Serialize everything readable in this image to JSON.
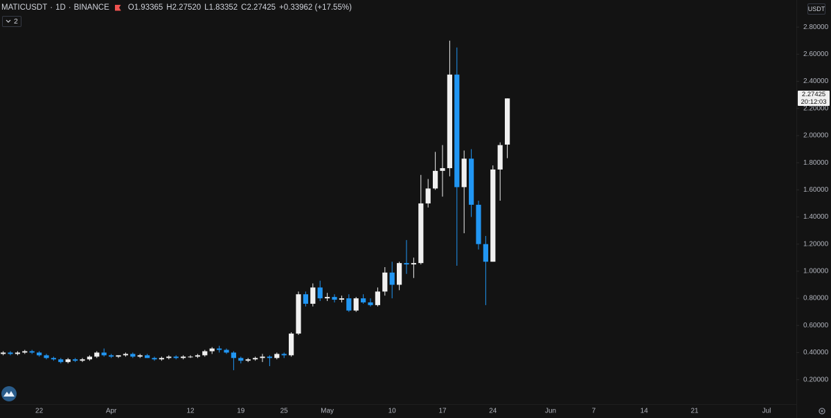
{
  "chart_data": {
    "type": "candlestick",
    "symbol": "MATICUSDT",
    "interval": "1D",
    "exchange": "BINANCE",
    "ohlc_legend": [
      {
        "label": "O",
        "value": "1.93365"
      },
      {
        "label": "H",
        "value": "2.27520"
      },
      {
        "label": "L",
        "value": "1.83352"
      },
      {
        "label": "C",
        "value": "2.27425"
      }
    ],
    "change": "+0.33962 (+17.55%)",
    "indicators_count": 2,
    "currency": "USDT",
    "last_price_label": "2.27425",
    "countdown": "20:12:03",
    "up_color": "#f0f0f0",
    "down_color": "#2196f3",
    "categories": [
      null,
      null,
      null,
      null,
      null,
      "22",
      null,
      null,
      null,
      null,
      null,
      null,
      null,
      null,
      null,
      "Apr",
      null,
      null,
      null,
      null,
      null,
      null,
      null,
      null,
      null,
      null,
      "12",
      null,
      null,
      null,
      null,
      null,
      null,
      "19",
      null,
      null,
      null,
      null,
      null,
      "25",
      null,
      null,
      null,
      null,
      null,
      "May",
      null,
      null,
      null,
      null,
      null,
      null,
      null,
      null,
      "10",
      null,
      null,
      null,
      null,
      null,
      null,
      "17",
      null,
      null,
      null,
      null,
      null,
      null,
      "24",
      null,
      null,
      null,
      null,
      null,
      null,
      null,
      "Jun",
      null,
      null,
      null,
      null,
      null,
      "7",
      null,
      null,
      null,
      null,
      null,
      null,
      "14",
      null,
      null,
      null,
      null,
      null,
      null,
      "21",
      null,
      null,
      null,
      null,
      null,
      null,
      null,
      null,
      null,
      "Jul"
    ],
    "open": [
      0.39,
      0.4,
      0.39,
      0.4,
      0.41,
      0.4,
      0.38,
      0.36,
      0.35,
      0.33,
      0.35,
      0.34,
      0.35,
      0.37,
      0.4,
      0.38,
      0.37,
      0.38,
      0.39,
      0.37,
      0.38,
      0.36,
      0.35,
      0.36,
      0.37,
      0.36,
      0.37,
      0.37,
      0.38,
      0.41,
      0.43,
      0.42,
      0.4,
      0.36,
      0.34,
      0.35,
      0.36,
      0.37,
      0.36,
      0.39,
      0.38,
      0.54,
      0.83,
      0.76,
      0.88,
      0.8,
      0.81,
      0.79,
      0.8,
      0.71,
      0.8,
      0.77,
      0.75,
      0.85,
      0.99,
      0.9,
      1.06,
      1.05,
      1.06,
      1.5,
      1.61,
      1.74,
      1.76,
      2.45,
      1.62,
      1.83,
      1.49,
      1.2,
      1.07,
      1.75,
      1.93365,
      null,
      null,
      null,
      null,
      null,
      null,
      null,
      null,
      null,
      null,
      null,
      null,
      null,
      null,
      null,
      null,
      null,
      null,
      null,
      null,
      null,
      null,
      null,
      null,
      null,
      null,
      null,
      null,
      null,
      null,
      null,
      null,
      null,
      null,
      null,
      null
    ],
    "high": [
      0.41,
      0.41,
      0.41,
      0.42,
      0.42,
      0.41,
      0.39,
      0.37,
      0.36,
      0.36,
      0.36,
      0.36,
      0.38,
      0.41,
      0.43,
      0.39,
      0.38,
      0.4,
      0.4,
      0.39,
      0.39,
      0.37,
      0.37,
      0.38,
      0.38,
      0.38,
      0.38,
      0.39,
      0.42,
      0.44,
      0.45,
      0.43,
      0.41,
      0.37,
      0.36,
      0.37,
      0.39,
      0.38,
      0.4,
      0.4,
      0.55,
      0.85,
      0.85,
      0.91,
      0.93,
      0.84,
      0.83,
      0.82,
      0.83,
      0.81,
      0.83,
      0.8,
      0.88,
      1.03,
      1.07,
      1.07,
      1.23,
      1.1,
      1.71,
      1.68,
      1.88,
      1.93,
      2.7,
      2.65,
      1.89,
      1.9,
      1.52,
      1.26,
      1.78,
      1.95,
      2.2752,
      null,
      null,
      null,
      null,
      null,
      null,
      null,
      null,
      null,
      null,
      null,
      null,
      null,
      null,
      null,
      null,
      null,
      null,
      null,
      null,
      null,
      null,
      null,
      null,
      null,
      null,
      null,
      null,
      null,
      null,
      null,
      null,
      null,
      null,
      null,
      null
    ],
    "low": [
      0.38,
      0.38,
      0.38,
      0.39,
      0.39,
      0.37,
      0.35,
      0.34,
      0.32,
      0.32,
      0.33,
      0.33,
      0.34,
      0.36,
      0.37,
      0.36,
      0.36,
      0.37,
      0.36,
      0.36,
      0.36,
      0.34,
      0.34,
      0.35,
      0.35,
      0.35,
      0.36,
      0.36,
      0.37,
      0.39,
      0.4,
      0.39,
      0.27,
      0.32,
      0.33,
      0.34,
      0.33,
      0.3,
      0.35,
      0.36,
      0.37,
      0.53,
      0.74,
      0.74,
      0.78,
      0.78,
      0.77,
      0.77,
      0.7,
      0.7,
      0.76,
      0.74,
      0.74,
      0.82,
      0.8,
      0.86,
      0.98,
      0.95,
      1.05,
      1.47,
      1.6,
      1.55,
      1.7,
      1.04,
      1.28,
      1.4,
      1.16,
      0.75,
      1.07,
      1.52,
      1.83352,
      null,
      null,
      null,
      null,
      null,
      null,
      null,
      null,
      null,
      null,
      null,
      null,
      null,
      null,
      null,
      null,
      null,
      null,
      null,
      null,
      null,
      null,
      null,
      null,
      null,
      null,
      null,
      null,
      null,
      null,
      null,
      null,
      null,
      null,
      null,
      null
    ],
    "close": [
      0.4,
      0.39,
      0.4,
      0.41,
      0.4,
      0.38,
      0.36,
      0.35,
      0.33,
      0.35,
      0.34,
      0.35,
      0.37,
      0.4,
      0.38,
      0.37,
      0.38,
      0.39,
      0.37,
      0.38,
      0.36,
      0.35,
      0.36,
      0.37,
      0.36,
      0.37,
      0.37,
      0.38,
      0.41,
      0.43,
      0.42,
      0.4,
      0.36,
      0.34,
      0.35,
      0.36,
      0.37,
      0.36,
      0.39,
      0.38,
      0.54,
      0.83,
      0.76,
      0.88,
      0.8,
      0.81,
      0.79,
      0.8,
      0.71,
      0.8,
      0.77,
      0.75,
      0.85,
      0.99,
      0.9,
      1.06,
      1.05,
      1.06,
      1.5,
      1.61,
      1.74,
      1.76,
      2.45,
      1.62,
      1.83,
      1.49,
      1.2,
      1.07,
      1.75,
      1.93,
      2.27425,
      null,
      null,
      null,
      null,
      null,
      null,
      null,
      null,
      null,
      null,
      null,
      null,
      null,
      null,
      null,
      null,
      null,
      null,
      null,
      null,
      null,
      null,
      null,
      null,
      null,
      null,
      null,
      null,
      null,
      null,
      null,
      null,
      null,
      null,
      null,
      null
    ],
    "ylim": [
      0.04,
      3.0
    ],
    "yticks": [
      {
        "value": 0.2,
        "label": "0.20000"
      },
      {
        "value": 0.4,
        "label": "0.40000"
      },
      {
        "value": 0.6,
        "label": "0.60000"
      },
      {
        "value": 0.8,
        "label": "0.80000"
      },
      {
        "value": 1.0,
        "label": "1.00000"
      },
      {
        "value": 1.2,
        "label": "1.20000"
      },
      {
        "value": 1.4,
        "label": "1.40000"
      },
      {
        "value": 1.6,
        "label": "1.60000"
      },
      {
        "value": 1.8,
        "label": "1.80000"
      },
      {
        "value": 2.0,
        "label": "2.00000"
      },
      {
        "value": 2.2,
        "label": "2.20000"
      },
      {
        "value": 2.4,
        "label": "2.40000"
      },
      {
        "value": 2.6,
        "label": "2.60000"
      },
      {
        "value": 2.8,
        "label": "2.80000"
      }
    ],
    "grid": false
  }
}
